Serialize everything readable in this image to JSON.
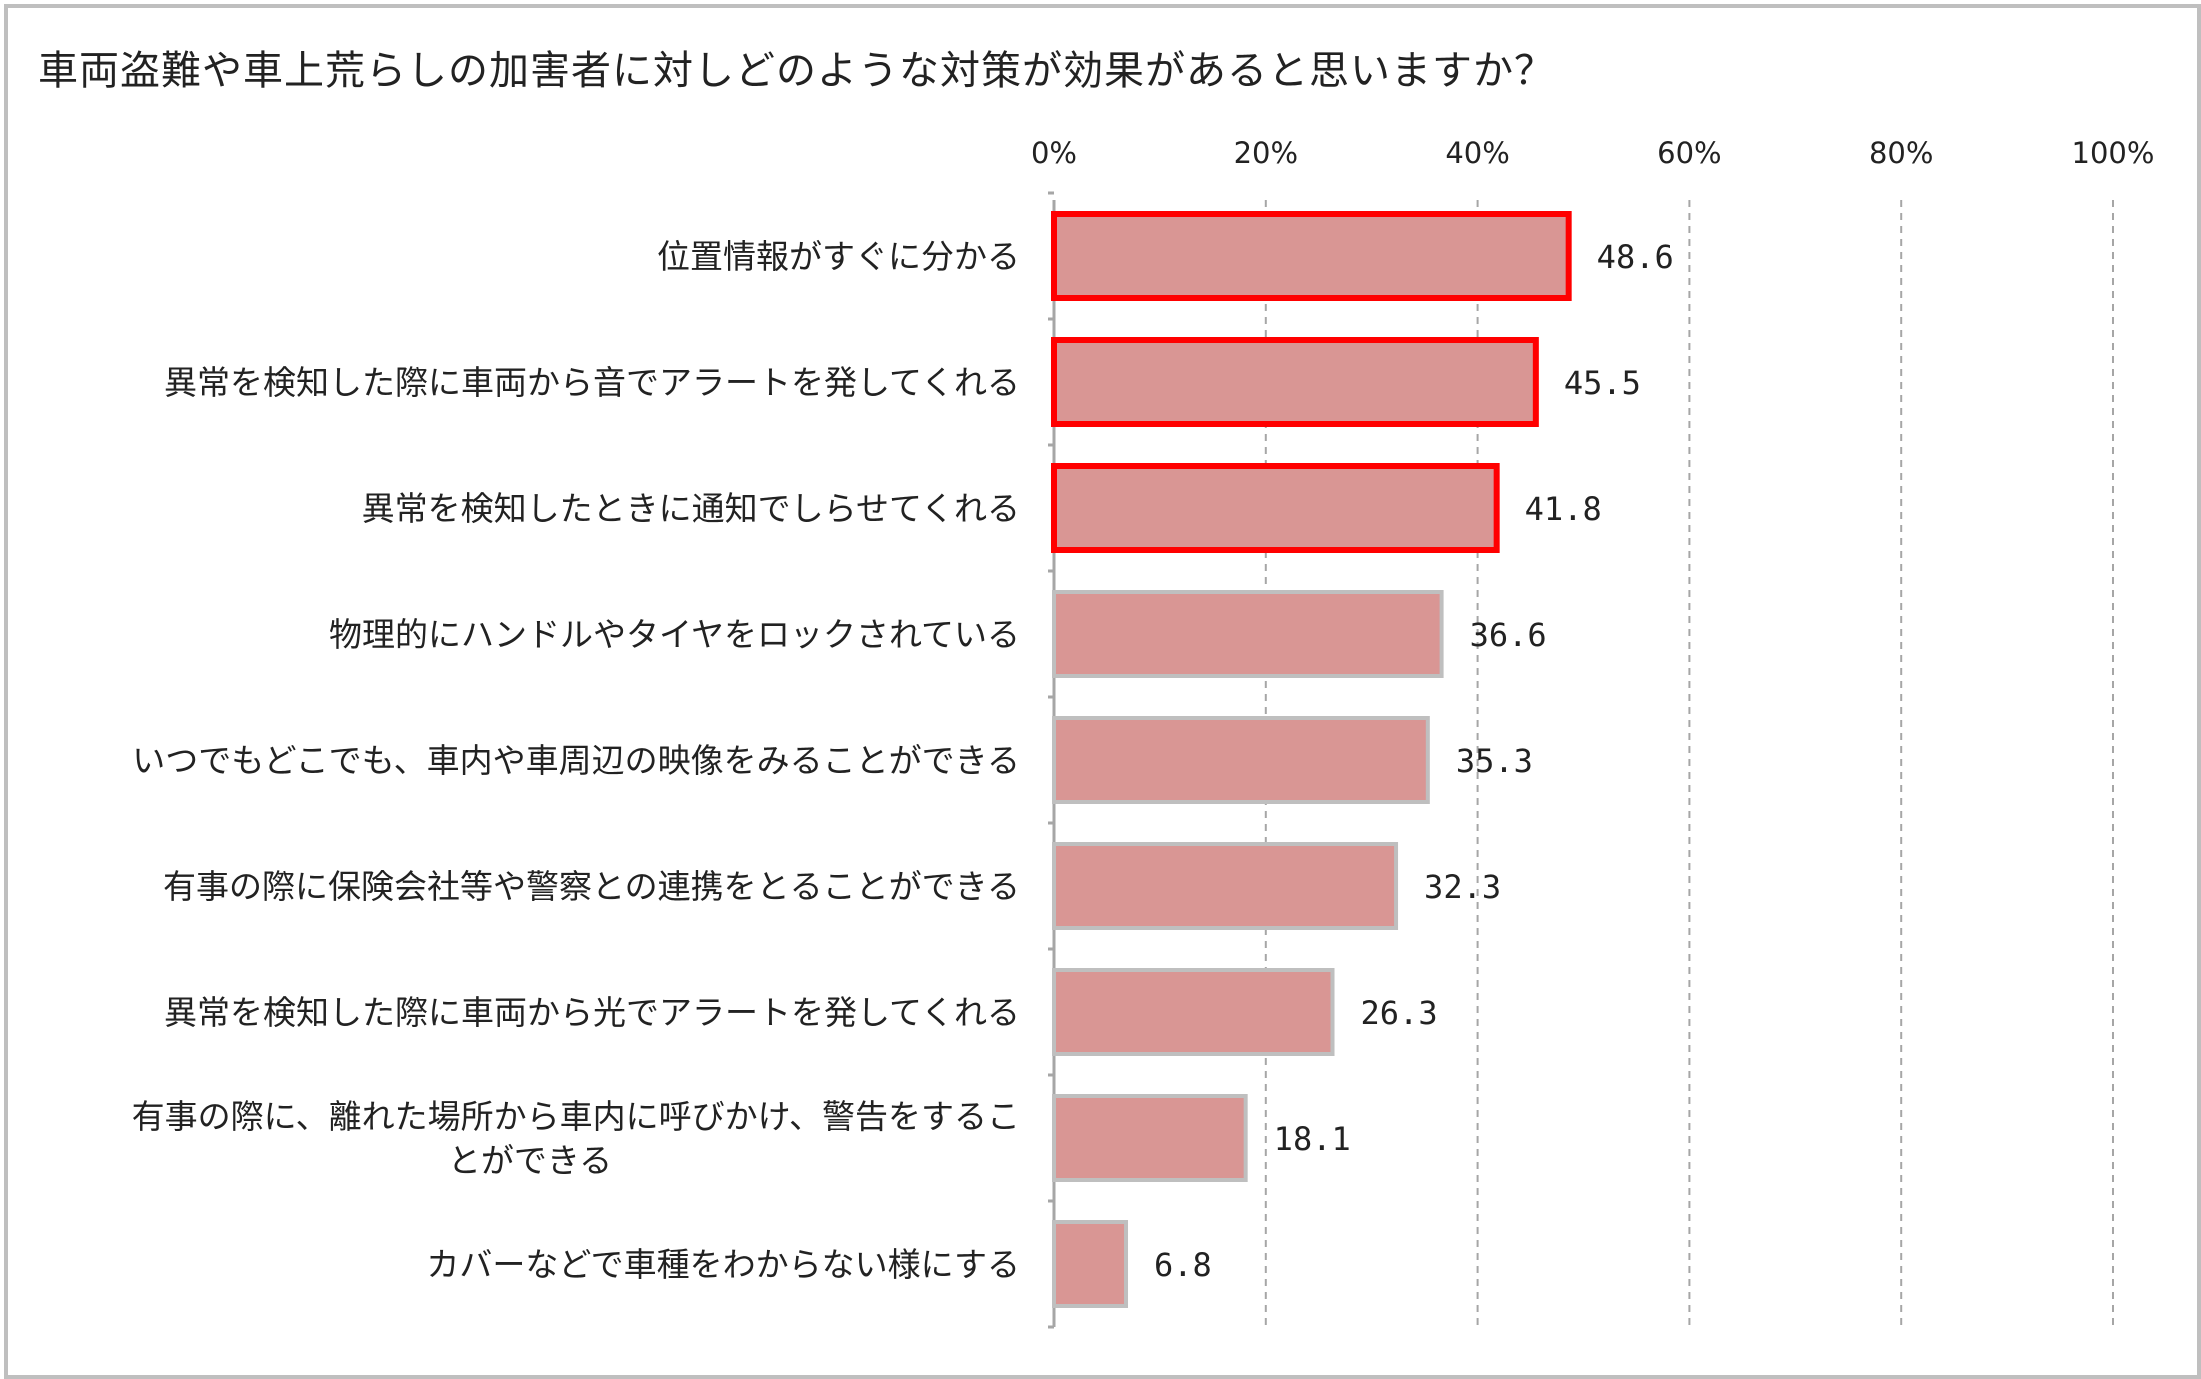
{
  "chart_data": {
    "type": "bar",
    "orientation": "horizontal",
    "title": "車両盗難や車上荒らしの加害者に対しどのような対策が効果があると思いますか？",
    "xlabel": "",
    "ylabel": "",
    "xlim": [
      0,
      100
    ],
    "tick_labels": [
      "0%",
      "20%",
      "40%",
      "60%",
      "80%",
      "100%"
    ],
    "grid": true,
    "grid_style": "dashed vertical",
    "legend": "none",
    "categories": [
      "位置情報がすぐに分かる",
      "異常を検知した際に車両から音でアラートを発してくれる",
      "異常を検知したときに通知でしらせてくれる",
      "物理的にハンドルやタイヤをロックされている",
      "いつでもどこでも、車内や車周辺の映像をみることができる",
      "有事の際に保険会社等や警察との連携をとることができる",
      "異常を検知した際に車両から光でアラートを発してくれる",
      "有事の際に、離れた場所から車内に呼びかけ、警告をすることができる",
      "カバーなどで車種をわからない様にする"
    ],
    "category_label_lines": [
      [
        "位置情報がすぐに分かる"
      ],
      [
        "異常を検知した際に車両から音でアラートを発してくれる"
      ],
      [
        "異常を検知したときに通知でしらせてくれる"
      ],
      [
        "物理的にハンドルやタイヤをロックされている"
      ],
      [
        "いつでもどこでも、車内や車周辺の映像をみることができる"
      ],
      [
        "有事の際に保険会社等や警察との連携をとることができる"
      ],
      [
        "異常を検知した際に車両から光でアラートを発してくれる"
      ],
      [
        "有事の際に、離れた場所から車内に呼びかけ、警告をするこ",
        "とができる"
      ],
      [
        "カバーなどで車種をわからない様にする"
      ]
    ],
    "values": [
      48.6,
      45.5,
      41.8,
      36.6,
      35.3,
      32.3,
      26.3,
      18.1,
      6.8
    ],
    "value_labels": [
      "48.6",
      "45.5",
      "41.8",
      "36.6",
      "35.3",
      "32.3",
      "26.3",
      "18.1",
      "6.8"
    ],
    "highlighted": [
      true,
      true,
      true,
      false,
      false,
      false,
      false,
      false,
      false
    ],
    "colors": {
      "bar_fill": "#d99694",
      "bar_border": "#bfbfbf",
      "highlight_border": "#ff0000",
      "grid": "#a6a6a6",
      "axis": "#a6a6a6",
      "text": "#222222"
    }
  }
}
